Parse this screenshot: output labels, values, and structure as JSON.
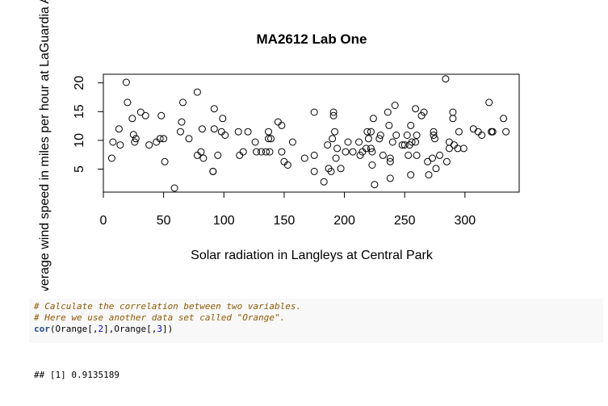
{
  "chart_data": {
    "type": "scatter",
    "title": "MA2612 Lab One",
    "xlabel": "Solar radiation in Langleys at Central Park",
    "ylabel": "Average wind speed in miles per hour at LaGuardia Airport",
    "xlim": [
      0,
      345
    ],
    "ylim": [
      1,
      21.5
    ],
    "x_ticks": [
      "0",
      "50",
      "100",
      "150",
      "200",
      "250",
      "300"
    ],
    "y_ticks": [
      "5",
      "10",
      "15",
      "20"
    ],
    "grid": false,
    "points": [
      [
        7,
        6.9
      ],
      [
        8,
        9.7
      ],
      [
        13,
        12
      ],
      [
        14,
        9.2
      ],
      [
        19,
        20.1
      ],
      [
        20,
        16.6
      ],
      [
        24,
        13.8
      ],
      [
        25,
        11
      ],
      [
        26,
        9.7
      ],
      [
        27,
        10.3
      ],
      [
        31,
        14.9
      ],
      [
        35,
        14.3
      ],
      [
        38,
        9.2
      ],
      [
        44,
        9.7
      ],
      [
        47,
        10.3
      ],
      [
        48,
        14.3
      ],
      [
        50,
        10.3
      ],
      [
        51,
        6.3
      ],
      [
        59,
        1.7
      ],
      [
        64,
        11.5
      ],
      [
        65,
        13.2
      ],
      [
        66,
        16.6
      ],
      [
        71,
        10.3
      ],
      [
        78,
        18.4
      ],
      [
        78,
        7.4
      ],
      [
        81,
        8
      ],
      [
        82,
        12
      ],
      [
        83,
        6.9
      ],
      [
        91,
        4.6
      ],
      [
        91,
        4.6
      ],
      [
        92,
        12
      ],
      [
        92,
        15.5
      ],
      [
        95,
        7.4
      ],
      [
        98,
        11.5
      ],
      [
        99,
        13.8
      ],
      [
        101,
        10.9
      ],
      [
        112,
        11.5
      ],
      [
        113,
        7.4
      ],
      [
        116,
        8
      ],
      [
        120,
        11.5
      ],
      [
        126,
        9.7
      ],
      [
        127,
        8
      ],
      [
        131,
        8
      ],
      [
        135,
        8
      ],
      [
        137,
        10.3
      ],
      [
        137,
        11.5
      ],
      [
        138,
        8
      ],
      [
        139,
        10.3
      ],
      [
        145,
        13.2
      ],
      [
        148,
        8
      ],
      [
        148,
        12.6
      ],
      [
        150,
        6.3
      ],
      [
        153,
        5.7
      ],
      [
        157,
        9.7
      ],
      [
        167,
        6.9
      ],
      [
        175,
        14.9
      ],
      [
        175,
        7.4
      ],
      [
        175,
        4.6
      ],
      [
        183,
        2.8
      ],
      [
        186,
        9.2
      ],
      [
        187,
        5.1
      ],
      [
        189,
        4.6
      ],
      [
        190,
        10.3
      ],
      [
        191,
        14.9
      ],
      [
        191,
        14.3
      ],
      [
        192,
        11.5
      ],
      [
        193,
        6.9
      ],
      [
        194,
        8.6
      ],
      [
        197,
        5.1
      ],
      [
        201,
        8
      ],
      [
        203,
        9.7
      ],
      [
        207,
        8
      ],
      [
        212,
        9.7
      ],
      [
        213,
        7.4
      ],
      [
        215,
        8
      ],
      [
        218,
        8.6
      ],
      [
        219,
        11.5
      ],
      [
        220,
        10.3
      ],
      [
        222,
        8.6
      ],
      [
        222,
        11.5
      ],
      [
        223,
        5.7
      ],
      [
        223,
        8
      ],
      [
        224,
        13.8
      ],
      [
        225,
        2.3
      ],
      [
        229,
        10.3
      ],
      [
        230,
        10.9
      ],
      [
        232,
        7.4
      ],
      [
        236,
        14.9
      ],
      [
        237,
        12.6
      ],
      [
        238,
        6.3
      ],
      [
        238,
        6.9
      ],
      [
        238,
        3.4
      ],
      [
        240,
        9.7
      ],
      [
        242,
        16.1
      ],
      [
        243,
        10.9
      ],
      [
        248,
        9.2
      ],
      [
        250,
        9.2
      ],
      [
        252,
        10.9
      ],
      [
        253,
        7.4
      ],
      [
        254,
        9.2
      ],
      [
        255,
        12.6
      ],
      [
        255,
        4
      ],
      [
        256,
        9.7
      ],
      [
        259,
        15.5
      ],
      [
        259,
        9.7
      ],
      [
        260,
        10.9
      ],
      [
        260,
        7.4
      ],
      [
        264,
        14.3
      ],
      [
        266,
        14.9
      ],
      [
        269,
        6.3
      ],
      [
        270,
        4
      ],
      [
        273,
        6.9
      ],
      [
        274,
        11.5
      ],
      [
        274,
        10.9
      ],
      [
        275,
        10.3
      ],
      [
        276,
        5.1
      ],
      [
        279,
        7.4
      ],
      [
        284,
        20.7
      ],
      [
        285,
        6.3
      ],
      [
        287,
        8.6
      ],
      [
        287,
        9.7
      ],
      [
        290,
        14.9
      ],
      [
        290,
        13.8
      ],
      [
        291,
        9.2
      ],
      [
        294,
        8.6
      ],
      [
        295,
        11.5
      ],
      [
        299,
        8.6
      ],
      [
        307,
        12
      ],
      [
        311,
        11.5
      ],
      [
        314,
        10.9
      ],
      [
        320,
        16.6
      ],
      [
        322,
        11.5
      ],
      [
        322,
        11.5
      ],
      [
        323,
        11.5
      ],
      [
        332,
        13.8
      ],
      [
        334,
        11.5
      ]
    ]
  },
  "code": {
    "comment1": "# Calculate the correlation between two variables.",
    "comment2": "# Here we use another data set called \"Orange\".",
    "fn_name": "cor",
    "arg_prefix1": "(Orange[,",
    "arg_num1": "2",
    "arg_mid": "],Orange[,",
    "arg_num2": "3",
    "arg_suffix": "])"
  },
  "output": {
    "text": "## [1] 0.9135189"
  }
}
